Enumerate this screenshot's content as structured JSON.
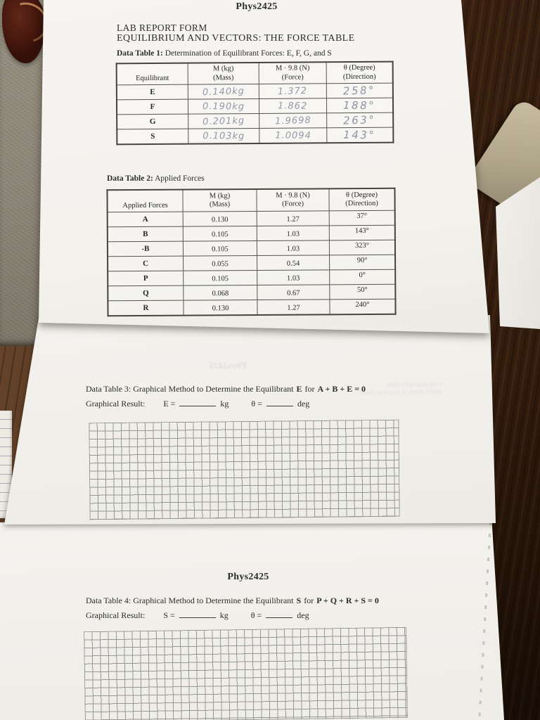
{
  "page1": {
    "course": "Phys2425",
    "form_title": "LAB REPORT FORM",
    "form_subtitle": "EQUILIBRIUM AND VECTORS: THE FORCE TABLE",
    "table1": {
      "caption_bold": "Data Table 1:",
      "caption_rest": " Determination of Equilibrant Forces: E, F, G, and S",
      "headers": [
        {
          "line1": "Equilibrant",
          "line2": ""
        },
        {
          "line1": "M (kg)",
          "line2": "(Mass)"
        },
        {
          "line1": "M · 9.8 (N)",
          "line2": "(Force)"
        },
        {
          "line1": "θ (Degree)",
          "line2": "(Direction)"
        }
      ],
      "rows": [
        {
          "label": "E",
          "mass": "0.140kg",
          "force": "1.372",
          "direction": "258°"
        },
        {
          "label": "F",
          "mass": "0.190kg",
          "force": "1.862",
          "direction": "188°"
        },
        {
          "label": "G",
          "mass": "0.201kg",
          "force": "1.9698",
          "direction": "263°"
        },
        {
          "label": "S",
          "mass": "0.103kg",
          "force": "1.0094",
          "direction": "143°"
        }
      ]
    },
    "table2": {
      "caption_bold": "Data Table 2:",
      "caption_rest": " Applied Forces",
      "headers": [
        {
          "line1": "Applied Forces",
          "line2": ""
        },
        {
          "line1": "M (kg)",
          "line2": "(Mass)"
        },
        {
          "line1": "M · 9.8 (N)",
          "line2": "(Force)"
        },
        {
          "line1": "θ (Degree)",
          "line2": "(Direction)"
        }
      ],
      "rows": [
        {
          "label": "A",
          "mass": "0.130",
          "force": "1.27",
          "direction": "37°"
        },
        {
          "label": "B",
          "mass": "0.105",
          "force": "1.03",
          "direction": "143°"
        },
        {
          "label": "-B",
          "mass": "0.105",
          "force": "1.03",
          "direction": "323°"
        },
        {
          "label": "C",
          "mass": "0.055",
          "force": "0.54",
          "direction": "90°"
        },
        {
          "label": "P",
          "mass": "0.105",
          "force": "1.03",
          "direction": "0°"
        },
        {
          "label": "Q",
          "mass": "0.068",
          "force": "0.67",
          "direction": "50°"
        },
        {
          "label": "R",
          "mass": "0.130",
          "force": "1.27",
          "direction": "240°"
        }
      ]
    }
  },
  "page2": {
    "caption_lead": "Data Table 3: Graphical Method to Determine the Equilibrant",
    "caption_var": "E",
    "caption_mid": "for",
    "caption_eq": "A + B  + E = 0",
    "result_label": "Graphical Result:",
    "result_var": "E =",
    "unit_mass": "kg",
    "theta_label": "θ =",
    "unit_angle": "deg",
    "ghost_title": "Phys2425",
    "ghost_line1": "LAB REPORT FORM",
    "ghost_line2": "EQUILIBRIUM AND VECTORS"
  },
  "page3": {
    "course": "Phys2425",
    "caption_lead": "Data Table 4: Graphical Method to Determine the Equilibrant",
    "caption_var": "S",
    "caption_mid": "for",
    "caption_eq": "P + Q + R + S = 0",
    "result_label": "Graphical Result:",
    "result_var": "S =",
    "unit_mass": "kg",
    "theta_label": "θ =",
    "unit_angle": "deg"
  }
}
